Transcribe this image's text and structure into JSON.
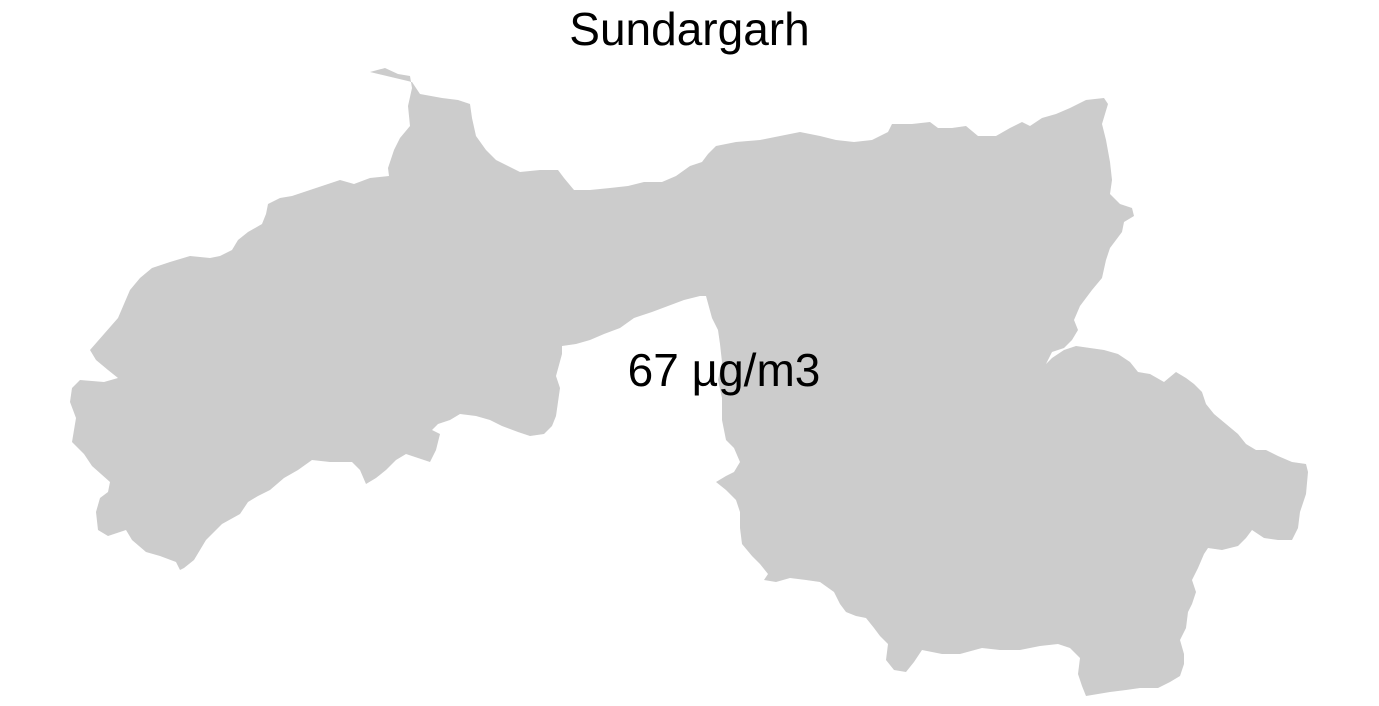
{
  "map": {
    "title": "Sundargarh",
    "value_label": "67 µg/m3",
    "region_fill": "#cccccc",
    "background": "#ffffff"
  }
}
